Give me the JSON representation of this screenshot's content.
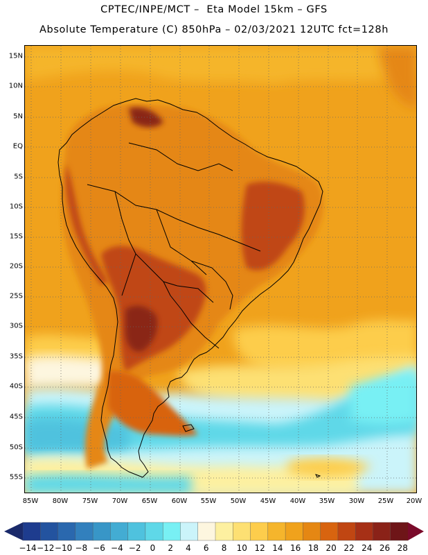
{
  "header": {
    "line1": "CPTEC/INPE/MCT –  Eta Model 15km – GFS",
    "line2": "Absolute Temperature (C) 850hPa – 02/03/2021 12UTC fct=128h"
  },
  "map": {
    "lat_ticks": [
      "15N",
      "10N",
      "5N",
      "EQ",
      "5S",
      "10S",
      "15S",
      "20S",
      "25S",
      "30S",
      "35S",
      "40S",
      "45S",
      "50S",
      "55S"
    ],
    "lon_ticks": [
      "85W",
      "80W",
      "75W",
      "70W",
      "65W",
      "60W",
      "55W",
      "50W",
      "45W",
      "40W",
      "35W",
      "30W",
      "25W",
      "20W"
    ],
    "grid": "dotted",
    "colors": {
      "ocean_warm": "#f0ad1e",
      "land_hot": "#c8561b",
      "land_hottest": "#8a2611",
      "cold_south": "#5ee0ec",
      "coastline": "#000000"
    }
  },
  "colorbar": {
    "labels": [
      "−14",
      "−12",
      "−10",
      "−8",
      "−6",
      "−4",
      "−2",
      "0",
      "2",
      "4",
      "6",
      "8",
      "10",
      "12",
      "14",
      "16",
      "18",
      "20",
      "22",
      "24",
      "26",
      "28"
    ],
    "colors": [
      "#1e3c8e",
      "#23539f",
      "#2a68ae",
      "#3280bd",
      "#3896c7",
      "#43acd3",
      "#4fc2de",
      "#5fd8e8",
      "#78f0f4",
      "#cbf4fa",
      "#fdf6df",
      "#fdf0a0",
      "#fde073",
      "#fdcd4c",
      "#f5b52c",
      "#f0a21c",
      "#e58713",
      "#d8640f",
      "#c04612",
      "#a63016",
      "#8a2218",
      "#6e1518"
    ],
    "left_arrow_color": "#1a2a6a",
    "right_arrow_color": "#7a0a2a"
  }
}
